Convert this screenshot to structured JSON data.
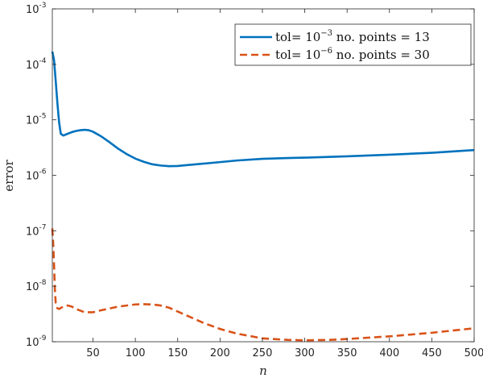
{
  "chart_data": {
    "type": "line",
    "xlabel": "n",
    "ylabel": "error",
    "xlim": [
      2,
      500
    ],
    "ylim": [
      1e-09,
      0.001
    ],
    "yscale": "log",
    "grid": false,
    "legend_position": "top-right",
    "x_ticks": [
      50,
      100,
      150,
      200,
      250,
      300,
      350,
      400,
      450,
      500
    ],
    "x_tick_labels": [
      "50",
      "100",
      "150",
      "200",
      "250",
      "300",
      "350",
      "400",
      "450",
      "500"
    ],
    "y_ticks": [
      {
        "value": 0.001,
        "base": "10",
        "exp": "-3"
      },
      {
        "value": 0.0001,
        "base": "10",
        "exp": "-4"
      },
      {
        "value": 1e-05,
        "base": "10",
        "exp": "-5"
      },
      {
        "value": 1e-06,
        "base": "10",
        "exp": "-6"
      },
      {
        "value": 1e-07,
        "base": "10",
        "exp": "-7"
      },
      {
        "value": 1e-08,
        "base": "10",
        "exp": "-8"
      },
      {
        "value": 1e-09,
        "base": "10",
        "exp": "-9"
      }
    ],
    "series": [
      {
        "legend": {
          "pre": "tol= 10",
          "exp": "−3",
          "post": " no. points = 13"
        },
        "color": "#0072BD",
        "style": "solid",
        "x": [
          2,
          4,
          6,
          8,
          10,
          12,
          15,
          20,
          25,
          30,
          35,
          40,
          45,
          50,
          60,
          70,
          80,
          90,
          100,
          110,
          120,
          130,
          140,
          150,
          160,
          180,
          200,
          220,
          250,
          280,
          300,
          350,
          400,
          450,
          500
        ],
        "y": [
          0.00017,
          0.00012,
          5e-05,
          2e-05,
          9e-06,
          5.6e-06,
          5.2e-06,
          5.6e-06,
          6e-06,
          6.3e-06,
          6.5e-06,
          6.6e-06,
          6.5e-06,
          6.1e-06,
          5e-06,
          3.9e-06,
          3e-06,
          2.4e-06,
          2e-06,
          1.75e-06,
          1.58e-06,
          1.5e-06,
          1.46e-06,
          1.47e-06,
          1.52e-06,
          1.62e-06,
          1.73e-06,
          1.85e-06,
          1.98e-06,
          2.05e-06,
          2.08e-06,
          2.2e-06,
          2.35e-06,
          2.55e-06,
          2.85e-06
        ]
      },
      {
        "legend": {
          "pre": "tol= 10",
          "exp": "−6",
          "post": " no. points = 30"
        },
        "color": "#D95319",
        "style": "dashed",
        "x": [
          2,
          3,
          4,
          5,
          6,
          8,
          10,
          15,
          20,
          25,
          30,
          40,
          50,
          60,
          80,
          100,
          110,
          120,
          130,
          140,
          160,
          180,
          200,
          220,
          250,
          280,
          300,
          330,
          350,
          400,
          450,
          500
        ],
        "y": [
          1.1e-07,
          6e-08,
          2.5e-08,
          9e-09,
          5e-09,
          4e-09,
          3.9e-09,
          4.3e-09,
          4.5e-09,
          4.3e-09,
          3.9e-09,
          3.4e-09,
          3.4e-09,
          3.7e-09,
          4.3e-09,
          4.7e-09,
          4.75e-09,
          4.7e-09,
          4.5e-09,
          4.1e-09,
          3e-09,
          2.2e-09,
          1.7e-09,
          1.4e-09,
          1.15e-09,
          1.08e-09,
          1.06e-09,
          1.08e-09,
          1.12e-09,
          1.25e-09,
          1.45e-09,
          1.75e-09
        ]
      }
    ]
  }
}
